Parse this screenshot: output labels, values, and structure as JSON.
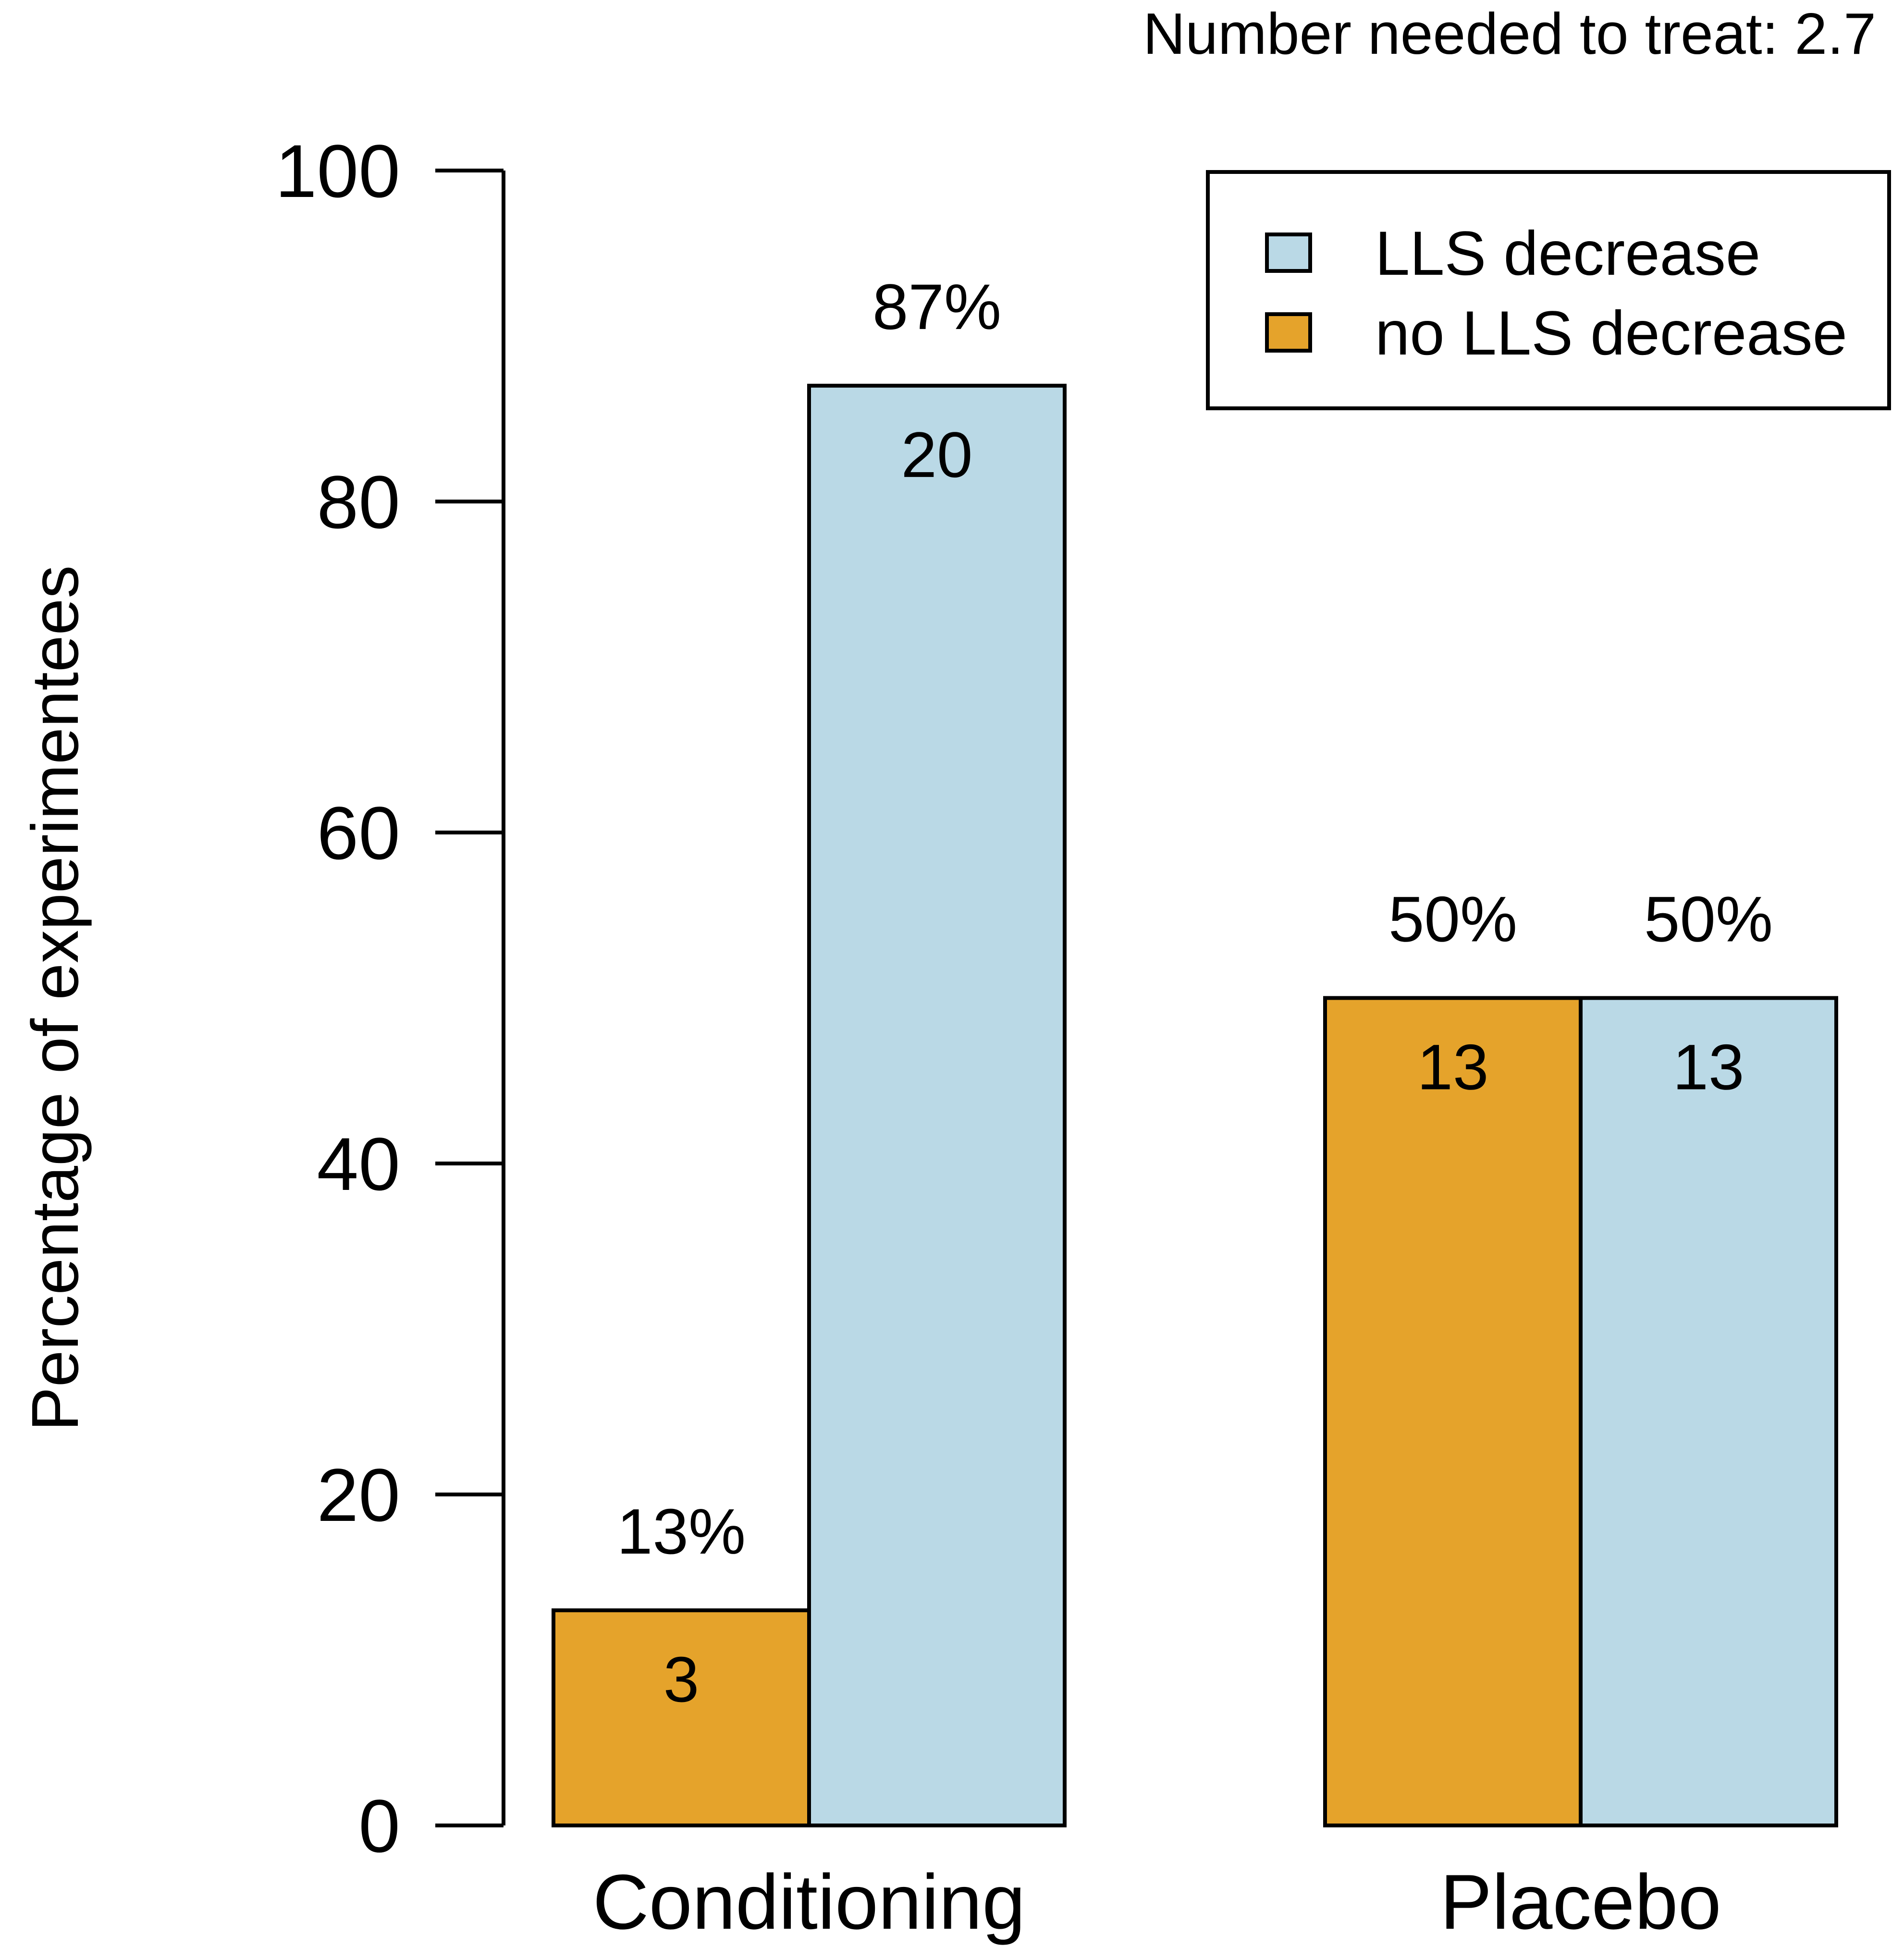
{
  "annotation": "Number needed to treat: 2.7",
  "chart_data": {
    "type": "bar",
    "categories": [
      "Conditioning",
      "Placebo"
    ],
    "series": [
      {
        "name": "no LLS decrease",
        "color": "#E5A32B",
        "values": [
          13,
          50
        ],
        "percent_labels": [
          "13%",
          "50%"
        ],
        "counts": [
          "3",
          "13"
        ]
      },
      {
        "name": "LLS decrease",
        "color": "#BAD9E6",
        "values": [
          87,
          50
        ],
        "percent_labels": [
          "87%",
          "50%"
        ],
        "counts": [
          "20",
          "13"
        ]
      }
    ],
    "legend": {
      "placement": "top-right",
      "entries": [
        "LLS decrease",
        "no LLS decrease"
      ],
      "entry_colors": [
        "#BAD9E6",
        "#E5A32B"
      ]
    },
    "ylabel": "Percentage of experimentees",
    "xlabel": "",
    "ylim": [
      0,
      100
    ],
    "yticks": [
      0,
      20,
      40,
      60,
      80,
      100
    ],
    "ytick_labels": [
      "0",
      "20",
      "40",
      "60",
      "80",
      "100"
    ]
  }
}
